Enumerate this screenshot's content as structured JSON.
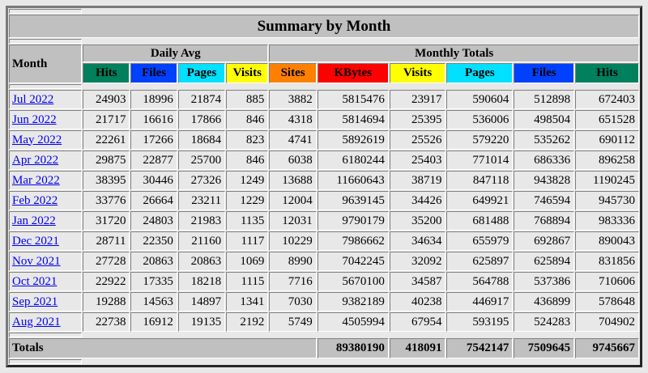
{
  "title": "Summary by Month",
  "table": {
    "month_header": "Month",
    "group_headers": {
      "daily_avg": "Daily Avg",
      "monthly_totals": "Monthly Totals"
    },
    "daily_columns": [
      {
        "label": "Hits",
        "color": "#00805C"
      },
      {
        "label": "Files",
        "color": "#0040FF"
      },
      {
        "label": "Pages",
        "color": "#00E0FF"
      },
      {
        "label": "Visits",
        "color": "#FFFF00"
      }
    ],
    "monthly_columns": [
      {
        "label": "Sites",
        "color": "#FF8000"
      },
      {
        "label": "KBytes",
        "color": "#FF0000"
      },
      {
        "label": "Visits",
        "color": "#FFFF00"
      },
      {
        "label": "Pages",
        "color": "#00E0FF"
      },
      {
        "label": "Files",
        "color": "#0040FF"
      },
      {
        "label": "Hits",
        "color": "#00805C"
      }
    ],
    "column_keys": [
      "hits",
      "files",
      "pages",
      "visits",
      "sites",
      "kbytes",
      "visits-total",
      "pages-total",
      "files-total",
      "hits-total"
    ],
    "rows": [
      {
        "month": "Jul 2022",
        "values": [
          "24903",
          "18996",
          "21874",
          "885",
          "3882",
          "5815476",
          "23917",
          "590604",
          "512898",
          "672403"
        ]
      },
      {
        "month": "Jun 2022",
        "values": [
          "21717",
          "16616",
          "17866",
          "846",
          "4318",
          "5814694",
          "25395",
          "536006",
          "498504",
          "651528"
        ]
      },
      {
        "month": "May 2022",
        "values": [
          "22261",
          "17266",
          "18684",
          "823",
          "4741",
          "5892619",
          "25526",
          "579220",
          "535262",
          "690112"
        ]
      },
      {
        "month": "Apr 2022",
        "values": [
          "29875",
          "22877",
          "25700",
          "846",
          "6038",
          "6180244",
          "25403",
          "771014",
          "686336",
          "896258"
        ]
      },
      {
        "month": "Mar 2022",
        "values": [
          "38395",
          "30446",
          "27326",
          "1249",
          "13688",
          "11660643",
          "38719",
          "847118",
          "943828",
          "1190245"
        ]
      },
      {
        "month": "Feb 2022",
        "values": [
          "33776",
          "26664",
          "23211",
          "1229",
          "12004",
          "9639145",
          "34426",
          "649921",
          "746594",
          "945730"
        ]
      },
      {
        "month": "Jan 2022",
        "values": [
          "31720",
          "24803",
          "21983",
          "1135",
          "12031",
          "9790179",
          "35200",
          "681488",
          "768894",
          "983336"
        ]
      },
      {
        "month": "Dec 2021",
        "values": [
          "28711",
          "22350",
          "21160",
          "1117",
          "10229",
          "7986662",
          "34634",
          "655979",
          "692867",
          "890043"
        ]
      },
      {
        "month": "Nov 2021",
        "values": [
          "27728",
          "20863",
          "20863",
          "1069",
          "8990",
          "7042245",
          "32092",
          "625897",
          "625894",
          "831856"
        ]
      },
      {
        "month": "Oct 2021",
        "values": [
          "22922",
          "17335",
          "18218",
          "1115",
          "7716",
          "5670100",
          "34587",
          "564788",
          "537386",
          "710606"
        ]
      },
      {
        "month": "Sep 2021",
        "values": [
          "19288",
          "14563",
          "14897",
          "1341",
          "7030",
          "9382189",
          "40238",
          "446917",
          "436899",
          "578648"
        ]
      },
      {
        "month": "Aug 2021",
        "values": [
          "22738",
          "16912",
          "19135",
          "2192",
          "5749",
          "4505994",
          "67954",
          "593195",
          "524283",
          "704902"
        ]
      }
    ],
    "totals_label": "Totals",
    "totals": [
      "89380190",
      "418091",
      "7542147",
      "7509645",
      "9745667"
    ]
  },
  "colors": {
    "header_bg": "#C0C0C0",
    "page_bg": "#E8E8E8",
    "link": "#0000EE"
  }
}
